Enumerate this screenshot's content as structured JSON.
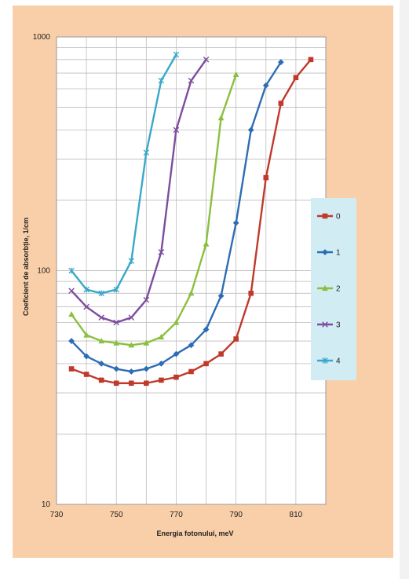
{
  "colors": {
    "panel_bg": "#f9cfa9",
    "plot_bg": "#ffffff",
    "grid": "#bdbdbd",
    "legend_bg": "#d2ecf4"
  },
  "chart_data": {
    "type": "line",
    "xlabel": "Energia fotonului, meV",
    "ylabel": "Coeficient de absorbție, 1/cm",
    "xlim": [
      730,
      820
    ],
    "ylim": [
      10,
      1000
    ],
    "yscale": "log",
    "xticks": [
      "730",
      "750",
      "770",
      "790",
      "810"
    ],
    "yticks": [
      "10",
      "100",
      "1000"
    ],
    "grid": true,
    "legend_position": "right",
    "series": [
      {
        "name": "0",
        "color": "#c0392b",
        "marker": "square",
        "x": [
          735,
          740,
          745,
          750,
          755,
          760,
          765,
          770,
          775,
          780,
          785,
          790,
          795,
          800,
          805,
          810,
          815
        ],
        "y": [
          38,
          36,
          34,
          33,
          33,
          33,
          34,
          35,
          37,
          40,
          44,
          51,
          80,
          250,
          520,
          670,
          800
        ]
      },
      {
        "name": "1",
        "color": "#2e6db4",
        "marker": "diamond",
        "x": [
          735,
          740,
          745,
          750,
          755,
          760,
          765,
          770,
          775,
          780,
          785,
          790,
          795,
          800,
          805
        ],
        "y": [
          50,
          43,
          40,
          38,
          37,
          38,
          40,
          44,
          48,
          56,
          78,
          160,
          400,
          620,
          780
        ]
      },
      {
        "name": "2",
        "color": "#8bbf3f",
        "marker": "triangle",
        "x": [
          735,
          740,
          745,
          750,
          755,
          760,
          765,
          770,
          775,
          780,
          785,
          790
        ],
        "y": [
          65,
          53,
          50,
          49,
          48,
          49,
          52,
          60,
          80,
          130,
          450,
          690
        ]
      },
      {
        "name": "3",
        "color": "#7d4d9e",
        "marker": "cross",
        "x": [
          735,
          740,
          745,
          750,
          755,
          760,
          765,
          770,
          775,
          780
        ],
        "y": [
          82,
          70,
          63,
          60,
          63,
          75,
          120,
          400,
          650,
          800
        ]
      },
      {
        "name": "4",
        "color": "#3aa8c8",
        "marker": "star",
        "x": [
          735,
          740,
          745,
          750,
          755,
          760,
          765,
          770
        ],
        "y": [
          100,
          83,
          80,
          83,
          110,
          320,
          650,
          840
        ]
      }
    ]
  }
}
